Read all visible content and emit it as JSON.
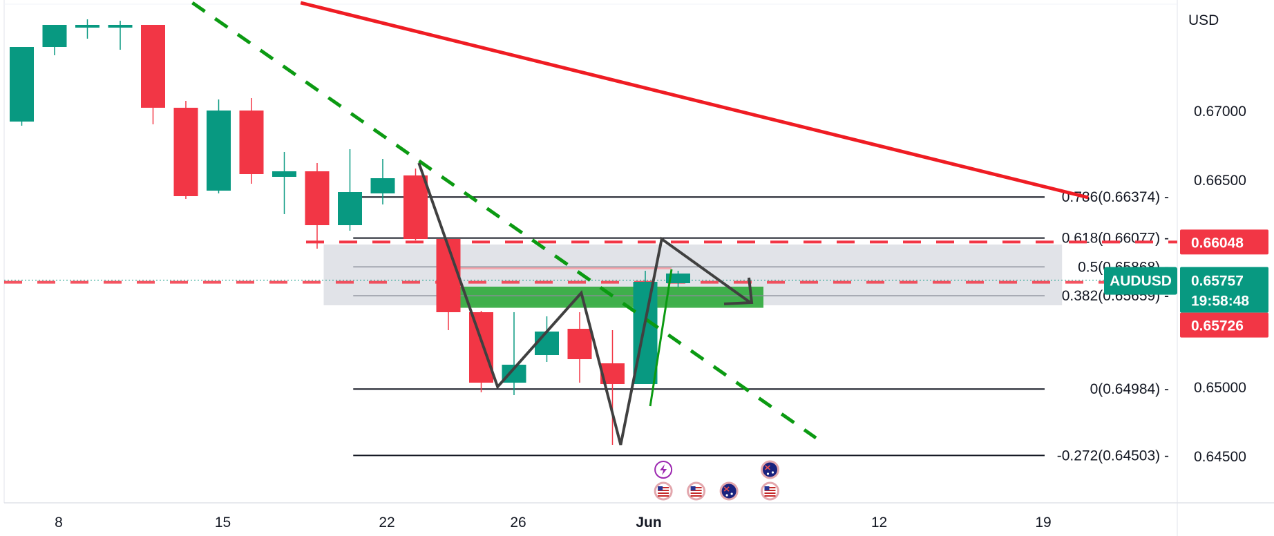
{
  "chart_data": {
    "type": "candlestick",
    "symbol": "AUDUSD",
    "currency_label": "USD",
    "colors": {
      "up": "#089981",
      "down": "#f23645",
      "trend_red": "#ef1c23",
      "trend_green": "#0b9a12",
      "zigzag": "#404040",
      "zone_green": "#2ea83a",
      "zone_gray": "#d1d4dc",
      "fib_line": "#131722"
    },
    "ylim": [
      0.6416,
      0.6777
    ],
    "y_ticks": [
      {
        "value": 0.67,
        "label": "0.67000"
      },
      {
        "value": 0.665,
        "label": "0.66500"
      },
      {
        "value": 0.65,
        "label": "0.65000"
      },
      {
        "value": 0.645,
        "label": "0.64500"
      }
    ],
    "x_ticks": [
      {
        "index": 1,
        "label": "8"
      },
      {
        "index": 6,
        "label": "15"
      },
      {
        "index": 11,
        "label": "22"
      },
      {
        "index": 15,
        "label": "26"
      },
      {
        "index": 19,
        "label": "Jun"
      },
      {
        "index": 26,
        "label": "12"
      },
      {
        "index": 31,
        "label": "19"
      }
    ],
    "candles": [
      {
        "i": 0,
        "o": 0.6692,
        "h": 0.6746,
        "l": 0.6689,
        "c": 0.6746
      },
      {
        "i": 1,
        "o": 0.6746,
        "h": 0.6762,
        "l": 0.674,
        "c": 0.6762
      },
      {
        "i": 2,
        "o": 0.676,
        "h": 0.6766,
        "l": 0.6752,
        "c": 0.6762
      },
      {
        "i": 3,
        "o": 0.676,
        "h": 0.6765,
        "l": 0.6744,
        "c": 0.6762
      },
      {
        "i": 4,
        "o": 0.6762,
        "h": 0.6762,
        "l": 0.669,
        "c": 0.6702
      },
      {
        "i": 5,
        "o": 0.6702,
        "h": 0.6707,
        "l": 0.6636,
        "c": 0.6638
      },
      {
        "i": 6,
        "o": 0.6642,
        "h": 0.6708,
        "l": 0.664,
        "c": 0.67
      },
      {
        "i": 7,
        "o": 0.67,
        "h": 0.6709,
        "l": 0.6647,
        "c": 0.6654
      },
      {
        "i": 8,
        "o": 0.6652,
        "h": 0.667,
        "l": 0.6625,
        "c": 0.6656
      },
      {
        "i": 9,
        "o": 0.6656,
        "h": 0.6662,
        "l": 0.66,
        "c": 0.6617
      },
      {
        "i": 10,
        "o": 0.6617,
        "h": 0.6672,
        "l": 0.6613,
        "c": 0.6641
      },
      {
        "i": 11,
        "o": 0.664,
        "h": 0.6665,
        "l": 0.6632,
        "c": 0.6651
      },
      {
        "i": 12,
        "o": 0.6653,
        "h": 0.6658,
        "l": 0.6606,
        "c": 0.6607
      },
      {
        "i": 13,
        "o": 0.6607,
        "h": 0.6607,
        "l": 0.6541,
        "c": 0.6554
      },
      {
        "i": 14,
        "o": 0.6554,
        "h": 0.6555,
        "l": 0.6496,
        "c": 0.6503
      },
      {
        "i": 15,
        "o": 0.6503,
        "h": 0.6554,
        "l": 0.6494,
        "c": 0.6516
      },
      {
        "i": 16,
        "o": 0.6523,
        "h": 0.6551,
        "l": 0.6518,
        "c": 0.654
      },
      {
        "i": 17,
        "o": 0.6542,
        "h": 0.6554,
        "l": 0.6503,
        "c": 0.652
      },
      {
        "i": 18,
        "o": 0.6517,
        "h": 0.6541,
        "l": 0.6458,
        "c": 0.6502
      },
      {
        "i": 19,
        "o": 0.6502,
        "h": 0.6584,
        "l": 0.6502,
        "c": 0.6576
      },
      {
        "i": 20,
        "o": 0.6575,
        "h": 0.6584,
        "l": 0.6572,
        "c": 0.6582
      }
    ],
    "trendlines": [
      {
        "name": "red-trendline",
        "from": [
          8.5,
          0.6778
        ],
        "to": [
          32.5,
          0.6637
        ],
        "style": "solid"
      },
      {
        "name": "green-trendline",
        "from": [
          5.2,
          0.6778
        ],
        "to": [
          24.2,
          0.6463
        ],
        "style": "dashed"
      },
      {
        "name": "green-impulse-line",
        "from": [
          19.15,
          0.6486
        ],
        "to": [
          19.8,
          0.6585
        ],
        "style": "solid"
      }
    ],
    "zigzag": [
      [
        12.1,
        0.6662
      ],
      [
        14.5,
        0.65
      ],
      [
        17.05,
        0.6568
      ],
      [
        18.25,
        0.6458
      ],
      [
        19.5,
        0.6607
      ],
      [
        22.2,
        0.6561
      ]
    ],
    "zones": [
      {
        "name": "gray-zone",
        "x": [
          9.2,
          31.7
        ],
        "y": [
          0.6559,
          0.6603
        ]
      },
      {
        "name": "green-zone",
        "x": [
          13.15,
          22.6
        ],
        "y": [
          0.65572,
          0.65725
        ]
      },
      {
        "name": "pink-zone",
        "x": [
          13.15,
          19.8
        ],
        "y": [
          0.6585,
          0.6587
        ]
      }
    ],
    "fib_levels": [
      {
        "value": 0.66374,
        "label": "0.786(0.66374)",
        "x_start": 10.1
      },
      {
        "value": 0.66077,
        "label": "0.618(0.66077)",
        "x_start": 10.1
      },
      {
        "value": 0.65868,
        "label": "0.5(0.65868)",
        "x_start": 10.1
      },
      {
        "value": 0.65659,
        "label": "0.382(0.65659)",
        "x_start": 10.1
      },
      {
        "value": 0.64984,
        "label": "0(0.64984)",
        "x_start": 10.1
      },
      {
        "value": 0.64503,
        "label": "-0.272(0.64503)",
        "x_start": 10.1
      }
    ],
    "dashed_levels": [
      {
        "name": "resistance-line",
        "value": 0.66048,
        "x_start": 9.2
      },
      {
        "name": "price-line",
        "value": 0.65757,
        "x_start": 0
      }
    ],
    "badges": [
      {
        "name": "resistance-badge",
        "value": 0.66048,
        "text": "0.66048",
        "color": "#f23645"
      },
      {
        "name": "price-badge",
        "value": 0.65757,
        "text": "0.65757",
        "symbol": "AUDUSD",
        "countdown": "19:58:48",
        "color": "#089981"
      },
      {
        "name": "low-badge",
        "value": 0.65726,
        "text": "0.65726",
        "color": "#f23645"
      }
    ],
    "events": [
      {
        "name": "event-lightning-icon",
        "index": 19.55,
        "row": 0,
        "kind": "lightning"
      },
      {
        "name": "event-flag-au-icon",
        "index": 22.8,
        "row": 0,
        "kind": "au"
      },
      {
        "name": "event-flag-us-icon",
        "index": 19.55,
        "row": 1,
        "kind": "us"
      },
      {
        "name": "event-flag-us-icon",
        "index": 20.55,
        "row": 1,
        "kind": "us"
      },
      {
        "name": "event-flag-au-icon",
        "index": 21.55,
        "row": 1,
        "kind": "au"
      },
      {
        "name": "event-flag-us-icon",
        "index": 22.8,
        "row": 1,
        "kind": "us"
      }
    ]
  }
}
